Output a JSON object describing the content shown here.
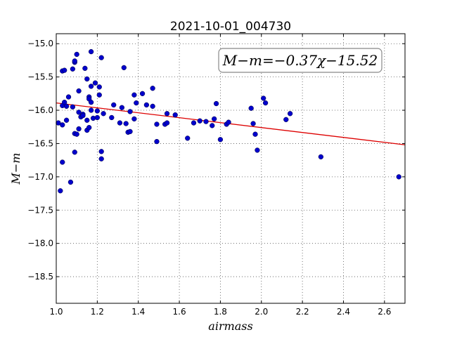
{
  "chart_data": {
    "type": "scatter",
    "title": "2021-10-01_004730",
    "xlabel": "airmass",
    "ylabel": "M−m",
    "annotation": "M−m=−0.37χ−15.52",
    "xlim": [
      1.0,
      2.7
    ],
    "ylim": [
      -18.9,
      -14.85
    ],
    "y_inverted": true,
    "grid": true,
    "xticks": [
      1.0,
      1.2,
      1.4,
      1.6,
      1.8,
      2.0,
      2.2,
      2.4,
      2.6
    ],
    "xtick_labels": [
      "1.0",
      "1.2",
      "1.4",
      "1.6",
      "1.8",
      "2.0",
      "2.2",
      "2.4",
      "2.6"
    ],
    "yticks": [
      -15.0,
      -15.5,
      -16.0,
      -16.5,
      -17.0,
      -17.5,
      -18.0,
      -18.5
    ],
    "ytick_labels": [
      "−15.0",
      "−15.5",
      "−16.0",
      "−16.5",
      "−17.0",
      "−17.5",
      "−18.0",
      "−18.5"
    ],
    "point_color": "#0000cc",
    "fit_color": "#dd0000",
    "fit": {
      "slope": -0.37,
      "intercept": -15.52
    },
    "points": [
      [
        1.01,
        -16.19
      ],
      [
        1.02,
        -17.21
      ],
      [
        1.03,
        -15.93
      ],
      [
        1.03,
        -16.22
      ],
      [
        1.03,
        -16.78
      ],
      [
        1.03,
        -15.41
      ],
      [
        1.04,
        -15.4
      ],
      [
        1.04,
        -15.88
      ],
      [
        1.05,
        -15.94
      ],
      [
        1.05,
        -16.15
      ],
      [
        1.06,
        -15.8
      ],
      [
        1.07,
        -17.08
      ],
      [
        1.08,
        -15.95
      ],
      [
        1.08,
        -15.38
      ],
      [
        1.09,
        -15.28
      ],
      [
        1.09,
        -15.26
      ],
      [
        1.1,
        -15.16
      ],
      [
        1.09,
        -16.35
      ],
      [
        1.1,
        -16.36
      ],
      [
        1.09,
        -16.63
      ],
      [
        1.11,
        -15.71
      ],
      [
        1.11,
        -16.03
      ],
      [
        1.11,
        -16.28
      ],
      [
        1.12,
        -16.1
      ],
      [
        1.13,
        -16.06
      ],
      [
        1.13,
        -16.08
      ],
      [
        1.14,
        -15.37
      ],
      [
        1.15,
        -15.53
      ],
      [
        1.15,
        -16.15
      ],
      [
        1.15,
        -16.3
      ],
      [
        1.16,
        -15.8
      ],
      [
        1.16,
        -16.26
      ],
      [
        1.17,
        -15.12
      ],
      [
        1.16,
        -15.83
      ],
      [
        1.17,
        -15.88
      ],
      [
        1.17,
        -16.0
      ],
      [
        1.17,
        -15.64
      ],
      [
        1.18,
        -16.12
      ],
      [
        1.19,
        -15.59
      ],
      [
        1.2,
        -16.01
      ],
      [
        1.2,
        -16.11
      ],
      [
        1.21,
        -15.77
      ],
      [
        1.21,
        -15.65
      ],
      [
        1.22,
        -15.21
      ],
      [
        1.22,
        -16.62
      ],
      [
        1.22,
        -16.73
      ],
      [
        1.23,
        -16.05
      ],
      [
        1.27,
        -16.11
      ],
      [
        1.28,
        -15.92
      ],
      [
        1.31,
        -16.19
      ],
      [
        1.32,
        -15.96
      ],
      [
        1.33,
        -15.36
      ],
      [
        1.34,
        -16.2
      ],
      [
        1.35,
        -16.33
      ],
      [
        1.36,
        -16.02
      ],
      [
        1.36,
        -16.32
      ],
      [
        1.38,
        -15.77
      ],
      [
        1.38,
        -16.13
      ],
      [
        1.39,
        -15.89
      ],
      [
        1.42,
        -15.75
      ],
      [
        1.44,
        -15.92
      ],
      [
        1.47,
        -15.94
      ],
      [
        1.47,
        -15.67
      ],
      [
        1.49,
        -16.21
      ],
      [
        1.49,
        -16.47
      ],
      [
        1.53,
        -16.21
      ],
      [
        1.54,
        -16.19
      ],
      [
        1.54,
        -16.05
      ],
      [
        1.58,
        -16.07
      ],
      [
        1.64,
        -16.42
      ],
      [
        1.67,
        -16.19
      ],
      [
        1.7,
        -16.16
      ],
      [
        1.73,
        -16.17
      ],
      [
        1.76,
        -16.23
      ],
      [
        1.77,
        -16.13
      ],
      [
        1.78,
        -15.9
      ],
      [
        1.8,
        -16.44
      ],
      [
        1.83,
        -16.21
      ],
      [
        1.84,
        -16.18
      ],
      [
        1.95,
        -15.97
      ],
      [
        1.96,
        -16.2
      ],
      [
        1.97,
        -16.36
      ],
      [
        1.98,
        -16.6
      ],
      [
        2.01,
        -15.82
      ],
      [
        2.02,
        -15.89
      ],
      [
        2.12,
        -16.14
      ],
      [
        2.14,
        -16.05
      ],
      [
        2.29,
        -16.7
      ],
      [
        2.67,
        -17.0
      ]
    ]
  }
}
